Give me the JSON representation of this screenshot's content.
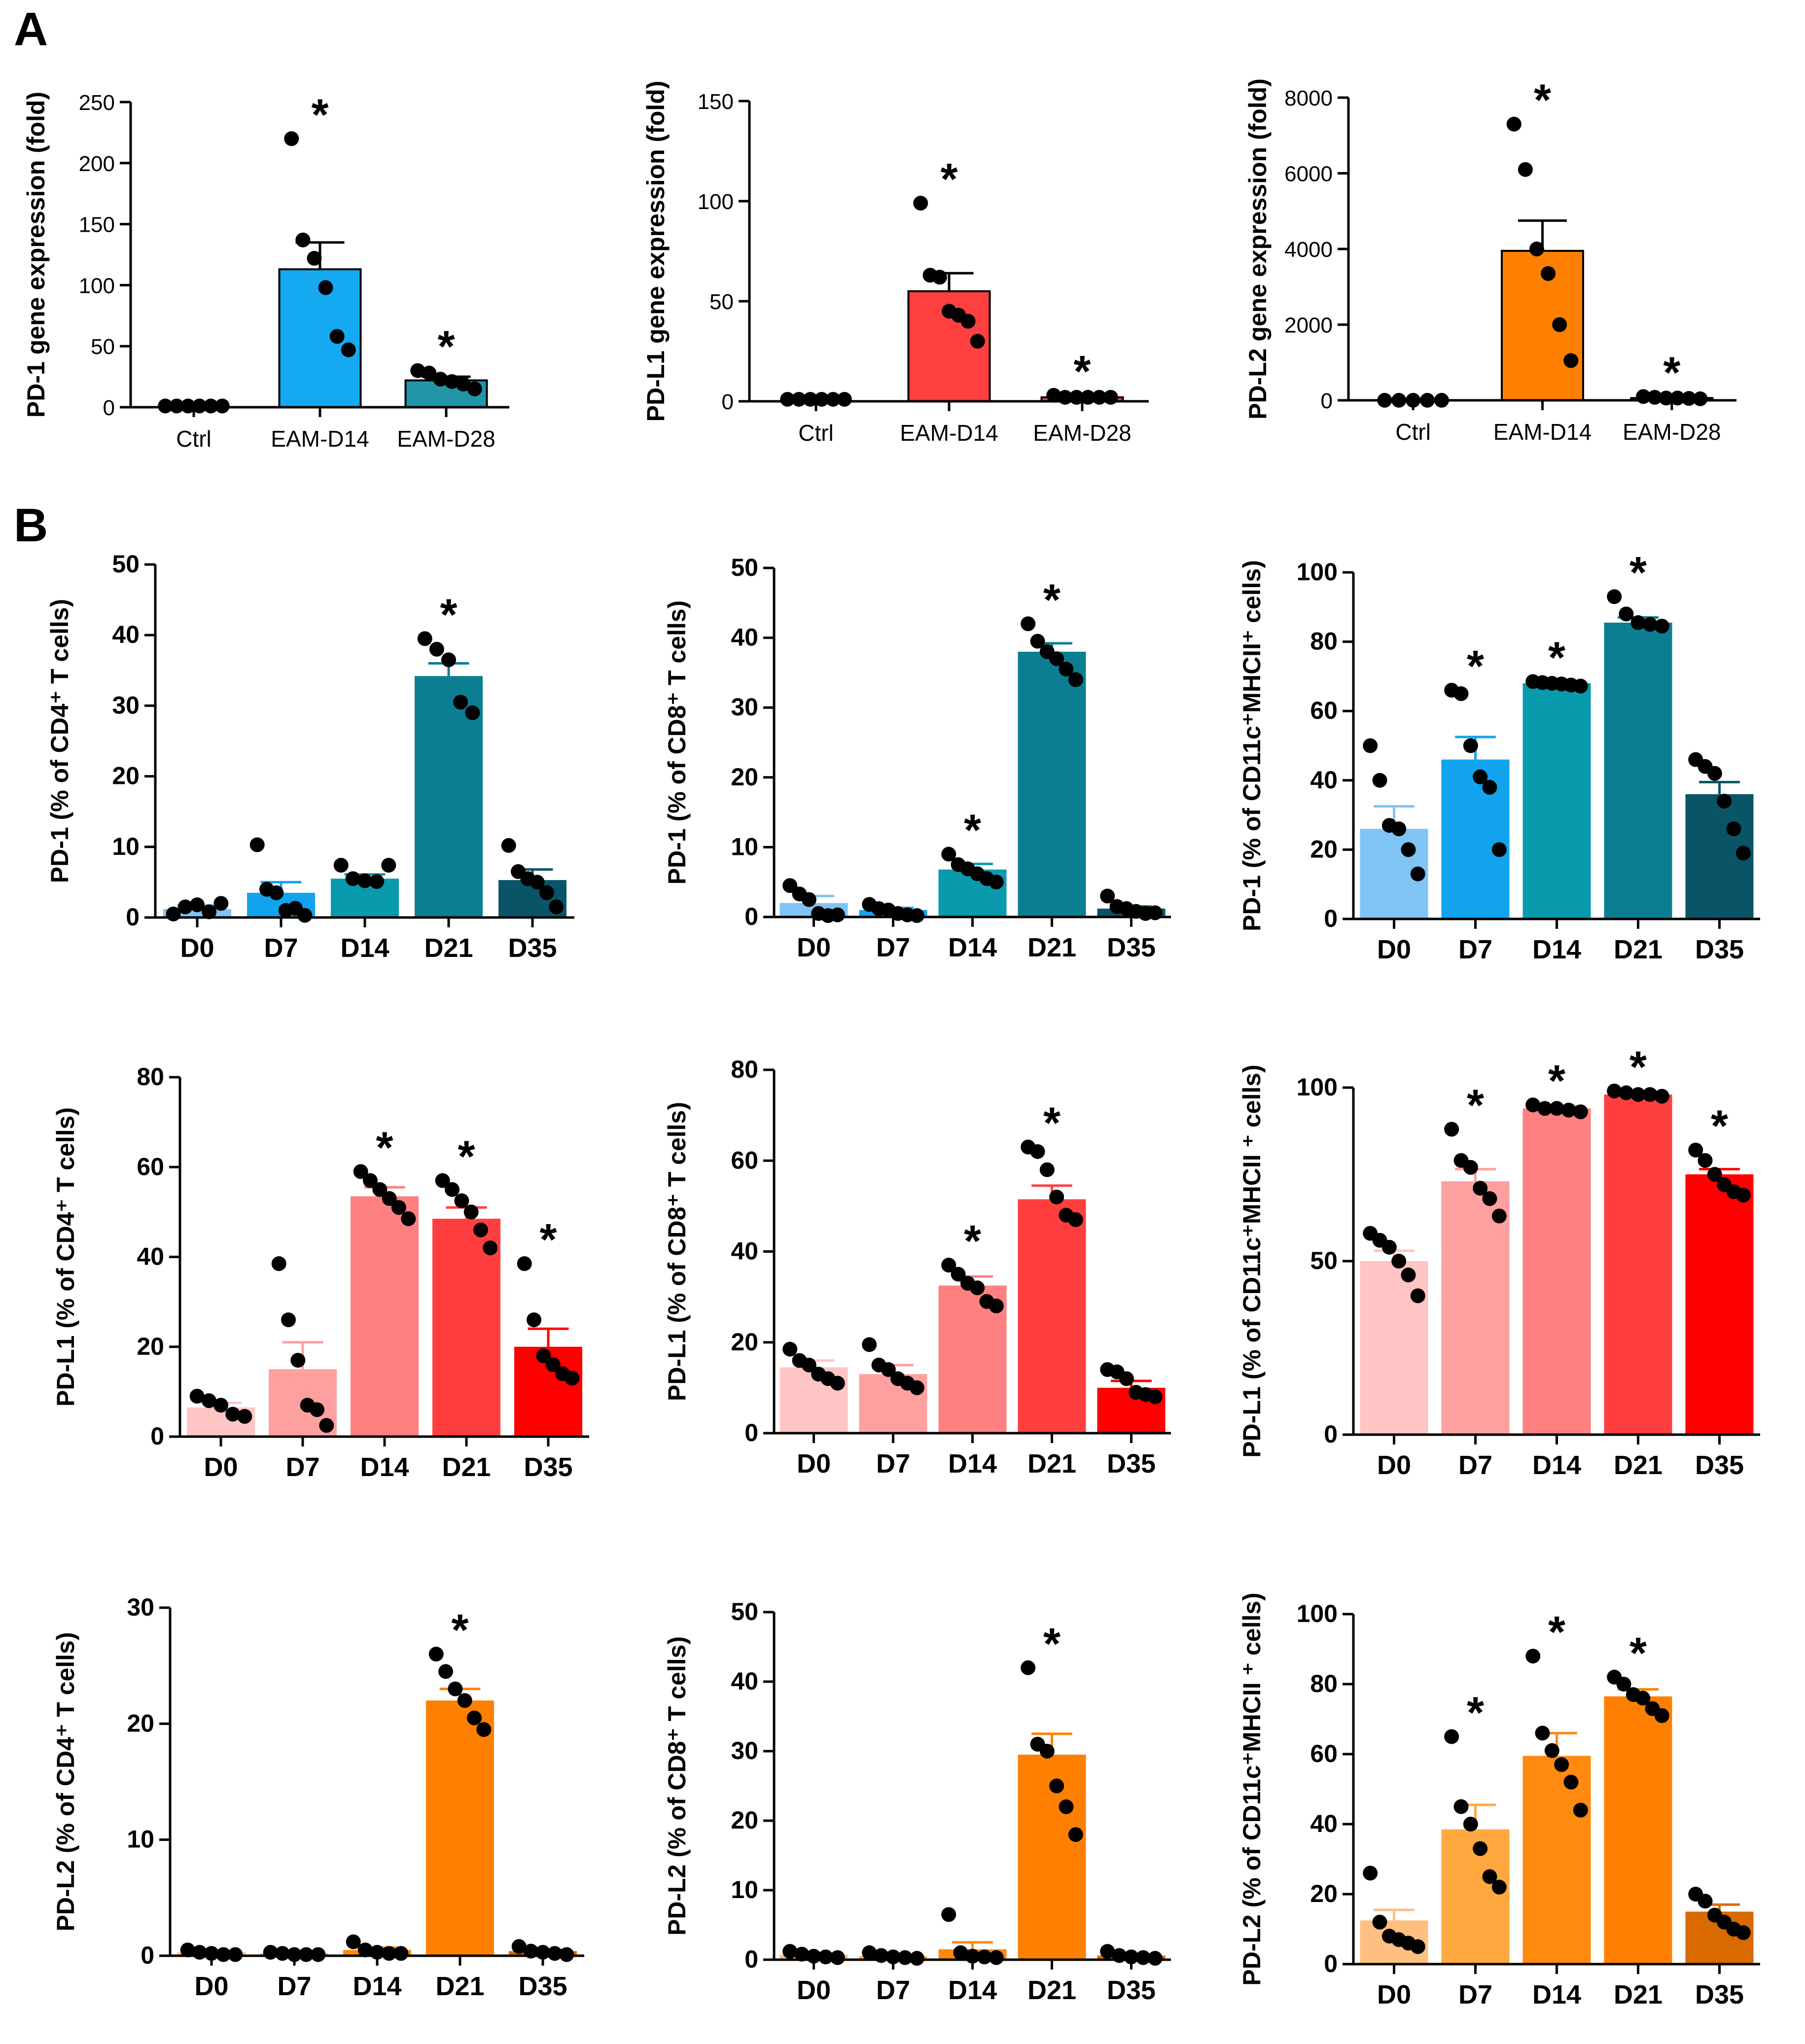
{
  "panel_labels": [
    "A",
    "B"
  ],
  "colors": {
    "blue_mid": "#14A9F0",
    "teal": "#2096A7",
    "red": "#FF4040",
    "orange": "#FF8000",
    "d0_blue": "#7FC4F5",
    "d7_blue": "#11A3EE",
    "d14_teal": "#0A9AAE",
    "d21_teal": "#0C7E92",
    "d35_teal": "#0A5468",
    "d0_pink": "#FFC4C4",
    "d7_pink": "#FFA0A0",
    "d14_pink": "#FF8080",
    "d21_red": "#FF3F3F",
    "d35_red": "#FF0000",
    "d0_orange": "#FFBF80",
    "d7_orange": "#FFA840",
    "d14_orange": "#FF8A10",
    "d21_orange": "#FF8000",
    "d35_orange": "#D96A00"
  },
  "chart_data": [
    {
      "type": "bar",
      "panel": "A",
      "ylabel": "PD-1 gene expression (fold)",
      "categories": [
        "Ctrl",
        "EAM-D14",
        "EAM-D28"
      ],
      "ylim": [
        0,
        250
      ],
      "yticks": [
        0,
        50,
        100,
        150,
        200,
        250
      ],
      "values": [
        1,
        113,
        22
      ],
      "errors": [
        0,
        22,
        3
      ],
      "colors": [
        "#FFFFFF",
        "#14A9F0",
        "#2096A7"
      ],
      "points": [
        [
          1,
          1,
          1,
          1,
          1,
          1
        ],
        [
          220,
          137,
          122,
          98,
          58,
          47
        ],
        [
          30,
          28,
          23,
          21,
          19,
          15
        ]
      ],
      "significance": [
        "",
        "*",
        "*"
      ]
    },
    {
      "type": "bar",
      "panel": "A",
      "ylabel": "PD-L1 gene expression (fold)",
      "categories": [
        "Ctrl",
        "EAM-D14",
        "EAM-D28"
      ],
      "ylim": [
        0,
        150
      ],
      "yticks": [
        0,
        50,
        100,
        150
      ],
      "values": [
        1,
        55,
        2
      ],
      "errors": [
        0,
        9,
        0.5
      ],
      "colors": [
        "#FFFFFF",
        "#FF4040",
        "#FF4040"
      ],
      "points": [
        [
          1,
          1,
          1,
          1,
          1,
          1
        ],
        [
          99,
          63,
          62,
          45,
          43,
          40,
          30
        ],
        [
          3,
          2,
          2,
          2,
          2,
          2
        ]
      ],
      "significance": [
        "",
        "*",
        "*"
      ]
    },
    {
      "type": "bar",
      "panel": "A",
      "ylabel": "PD-L2 gene expression (fold)",
      "categories": [
        "Ctrl",
        "EAM-D14",
        "EAM-D28"
      ],
      "ylim": [
        0,
        8000
      ],
      "yticks": [
        0,
        2000,
        4000,
        6000,
        8000
      ],
      "values": [
        1,
        3950,
        60
      ],
      "errors": [
        0,
        800,
        15
      ],
      "colors": [
        "#FFFFFF",
        "#FF8000",
        "#FF8000"
      ],
      "points": [
        [
          1,
          1,
          1,
          1,
          1
        ],
        [
          7300,
          6100,
          4000,
          3350,
          2000,
          1050
        ],
        [
          100,
          80,
          60,
          60,
          50,
          40
        ]
      ],
      "significance": [
        "",
        "*",
        "*"
      ]
    },
    {
      "type": "bar",
      "panel": "B",
      "ylabel": "PD-1 (% of CD4⁺ T cells)",
      "categories": [
        "D0",
        "D7",
        "D14",
        "D21",
        "D35"
      ],
      "ylim": [
        0,
        50
      ],
      "yticks": [
        0,
        10,
        20,
        30,
        40,
        50
      ],
      "values": [
        1.2,
        3.5,
        5.5,
        34.2,
        5.3
      ],
      "errors": [
        0.5,
        1.5,
        0.6,
        1.8,
        1.5
      ],
      "colors": [
        "#7FC4F5",
        "#11A3EE",
        "#0A9AAE",
        "#0C7E92",
        "#0A5468"
      ],
      "points": [
        [
          0.5,
          1.5,
          1.8,
          0.8,
          2
        ],
        [
          10.3,
          4,
          3.5,
          1,
          1.3,
          0.3
        ],
        [
          7.4,
          5.5,
          5.2,
          5.1,
          7.4
        ],
        [
          39.5,
          38,
          36.5,
          30.5,
          29
        ],
        [
          10.2,
          6.5,
          5.5,
          5,
          3.5,
          1.5
        ]
      ],
      "significance": [
        "",
        "",
        "",
        "*",
        ""
      ]
    },
    {
      "type": "bar",
      "panel": "B",
      "ylabel": "PD-1 (% of CD8⁺ T cells)",
      "categories": [
        "D0",
        "D7",
        "D14",
        "D21",
        "D35"
      ],
      "ylim": [
        0,
        50
      ],
      "yticks": [
        0,
        10,
        20,
        30,
        40,
        50
      ],
      "values": [
        2,
        1,
        6.8,
        38,
        1.2
      ],
      "errors": [
        1,
        0.3,
        0.8,
        1.2,
        0.3
      ],
      "colors": [
        "#7FC4F5",
        "#11A3EE",
        "#0A9AAE",
        "#0C7E92",
        "#0A5468"
      ],
      "points": [
        [
          4.5,
          3.3,
          2.5,
          0.5,
          0.2,
          0.3
        ],
        [
          1.8,
          1.2,
          1,
          0.5,
          0.3,
          0.2
        ],
        [
          9,
          7.5,
          6.9,
          6.2,
          5.5,
          5
        ],
        [
          42,
          39.5,
          38,
          37,
          35.5,
          34
        ],
        [
          3,
          1.5,
          1.2,
          0.8,
          0.5,
          0.6
        ]
      ],
      "significance": [
        "",
        "",
        "*",
        "*",
        ""
      ]
    },
    {
      "type": "bar",
      "panel": "B",
      "ylabel": "PD-1 (% of CD11c⁺MHCII⁺ cells)",
      "categories": [
        "D0",
        "D7",
        "D14",
        "D21",
        "D35"
      ],
      "ylim": [
        0,
        100
      ],
      "yticks": [
        0,
        20,
        40,
        60,
        80,
        100
      ],
      "values": [
        26,
        46,
        68,
        85.5,
        36
      ],
      "errors": [
        6.5,
        6.5,
        0.5,
        1.5,
        3.5
      ],
      "colors": [
        "#7FC4F5",
        "#11A3EE",
        "#0A9AAE",
        "#0C7E92",
        "#0A5468"
      ],
      "points": [
        [
          50,
          40,
          27,
          26,
          20,
          13
        ],
        [
          66,
          65,
          50,
          41,
          38,
          20
        ],
        [
          68.5,
          68.2,
          68,
          67.8,
          67.5,
          67.2
        ],
        [
          93,
          88,
          85.5,
          85,
          84.5
        ],
        [
          46,
          44,
          42,
          34,
          26,
          19
        ]
      ],
      "significance": [
        "",
        "*",
        "*",
        "*",
        ""
      ]
    },
    {
      "type": "bar",
      "panel": "B",
      "ylabel": "PD-L1 (% of CD4⁺ T cells)",
      "categories": [
        "D0",
        "D7",
        "D14",
        "D21",
        "D35"
      ],
      "ylim": [
        0,
        80
      ],
      "yticks": [
        0,
        20,
        40,
        60,
        80
      ],
      "values": [
        6.5,
        15,
        53.5,
        48.5,
        20
      ],
      "errors": [
        1,
        6,
        2,
        2.5,
        4
      ],
      "colors": [
        "#FFC4C4",
        "#FFA0A0",
        "#FF8080",
        "#FF3F3F",
        "#FF0000"
      ],
      "points": [
        [
          9,
          8,
          7,
          5,
          4.5
        ],
        [
          38.5,
          26,
          17,
          7,
          6,
          2.5
        ],
        [
          59,
          57,
          55,
          53,
          51,
          48.5
        ],
        [
          57,
          55,
          52.5,
          50,
          46,
          42
        ],
        [
          38.5,
          26,
          18,
          16,
          14,
          13
        ]
      ],
      "significance": [
        "",
        "",
        "*",
        "*",
        "*"
      ]
    },
    {
      "type": "bar",
      "panel": "B",
      "ylabel": "PD-L1 (% of CD8⁺ T cells)",
      "categories": [
        "D0",
        "D7",
        "D14",
        "D21",
        "D35"
      ],
      "ylim": [
        0,
        80
      ],
      "yticks": [
        0,
        20,
        40,
        60,
        80
      ],
      "values": [
        14.5,
        13,
        32.5,
        51.5,
        10
      ],
      "errors": [
        1.5,
        2,
        2,
        3,
        1.5
      ],
      "colors": [
        "#FFC4C4",
        "#FFA0A0",
        "#FF8080",
        "#FF3F3F",
        "#FF0000"
      ],
      "points": [
        [
          18.5,
          16,
          15,
          13,
          12,
          11
        ],
        [
          19.5,
          15,
          14,
          12,
          11,
          10
        ],
        [
          37,
          35,
          33,
          32,
          29,
          28
        ],
        [
          63,
          62,
          58,
          52,
          48,
          47
        ],
        [
          14,
          13.5,
          12,
          9,
          8.5,
          8
        ]
      ],
      "significance": [
        "",
        "",
        "*",
        "*",
        ""
      ]
    },
    {
      "type": "bar",
      "panel": "B",
      "ylabel": "PD-L1 (% of CD11c⁺MHCII ⁺ cells)",
      "categories": [
        "D0",
        "D7",
        "D14",
        "D21",
        "D35"
      ],
      "ylim": [
        0,
        100
      ],
      "yticks": [
        0,
        50,
        100
      ],
      "values": [
        50,
        73,
        94,
        98,
        75
      ],
      "errors": [
        3,
        3.5,
        0.5,
        0.5,
        1.5
      ],
      "colors": [
        "#FFC4C4",
        "#FFA0A0",
        "#FF8080",
        "#FF3F3F",
        "#FF0000"
      ],
      "points": [
        [
          58,
          56,
          54,
          50,
          46,
          40
        ],
        [
          88,
          79,
          77,
          71,
          68,
          63
        ],
        [
          95,
          94,
          94,
          93.5,
          93
        ],
        [
          99,
          98.5,
          98,
          98,
          97.5
        ],
        [
          82,
          79,
          75,
          72,
          70,
          69
        ]
      ],
      "significance": [
        "",
        "*",
        "*",
        "*",
        "*"
      ]
    },
    {
      "type": "bar",
      "panel": "B",
      "ylabel": "PD-L2 (% of CD4⁺ T cells)",
      "categories": [
        "D0",
        "D7",
        "D14",
        "D21",
        "D35"
      ],
      "ylim": [
        0,
        30
      ],
      "yticks": [
        0,
        10,
        20,
        30
      ],
      "values": [
        0.3,
        0.2,
        0.5,
        22,
        0.4
      ],
      "errors": [
        0.1,
        0.05,
        0.2,
        1,
        0.1
      ],
      "colors": [
        "#FFBF80",
        "#FFA840",
        "#FF8A10",
        "#FF8000",
        "#D96A00"
      ],
      "points": [
        [
          0.5,
          0.3,
          0.2,
          0.1,
          0.1
        ],
        [
          0.3,
          0.2,
          0.1,
          0.1,
          0.1
        ],
        [
          1.2,
          0.5,
          0.3,
          0.2,
          0.2
        ],
        [
          26,
          24.5,
          23,
          22,
          20.5,
          19.5
        ],
        [
          0.8,
          0.4,
          0.3,
          0.2,
          0.1
        ]
      ],
      "significance": [
        "",
        "",
        "",
        "*",
        ""
      ]
    },
    {
      "type": "bar",
      "panel": "B",
      "ylabel": "PD-L2 (% of CD8⁺ T cells)",
      "categories": [
        "D0",
        "D7",
        "D14",
        "D21",
        "D35"
      ],
      "ylim": [
        0,
        50
      ],
      "yticks": [
        0,
        10,
        20,
        30,
        40,
        50
      ],
      "values": [
        0.7,
        0.5,
        1.5,
        29.5,
        0.6
      ],
      "errors": [
        0.2,
        0.2,
        1,
        3,
        0.2
      ],
      "colors": [
        "#FFBF80",
        "#FFA840",
        "#FF8A10",
        "#FF8000",
        "#D96A00"
      ],
      "points": [
        [
          1.2,
          0.8,
          0.5,
          0.4,
          0.3
        ],
        [
          1,
          0.6,
          0.4,
          0.3,
          0.2
        ],
        [
          6.5,
          1,
          0.5,
          0.4,
          0.3
        ],
        [
          42,
          31,
          30,
          25,
          22,
          18
        ],
        [
          1.2,
          0.6,
          0.4,
          0.3,
          0.2
        ]
      ],
      "significance": [
        "",
        "",
        "",
        "*",
        ""
      ]
    },
    {
      "type": "bar",
      "panel": "B",
      "ylabel": "PD-L2 (% of CD11c⁺MHCII  ⁺ cells)",
      "categories": [
        "D0",
        "D7",
        "D14",
        "D21",
        "D35"
      ],
      "ylim": [
        0,
        100
      ],
      "yticks": [
        0,
        20,
        40,
        60,
        80,
        100
      ],
      "values": [
        12.5,
        38.5,
        59.5,
        76.5,
        15
      ],
      "errors": [
        3,
        7,
        6.5,
        2,
        2
      ],
      "colors": [
        "#FFBF80",
        "#FFA840",
        "#FF8A10",
        "#FF8000",
        "#D96A00"
      ],
      "points": [
        [
          26,
          12,
          8,
          7,
          6,
          5
        ],
        [
          65,
          45,
          40,
          33,
          25,
          22
        ],
        [
          88,
          66,
          61,
          57,
          52,
          44
        ],
        [
          82,
          80,
          77,
          76,
          73,
          71
        ],
        [
          20,
          18,
          14,
          12,
          10,
          9
        ]
      ],
      "significance": [
        "",
        "*",
        "*",
        "*",
        ""
      ]
    }
  ]
}
